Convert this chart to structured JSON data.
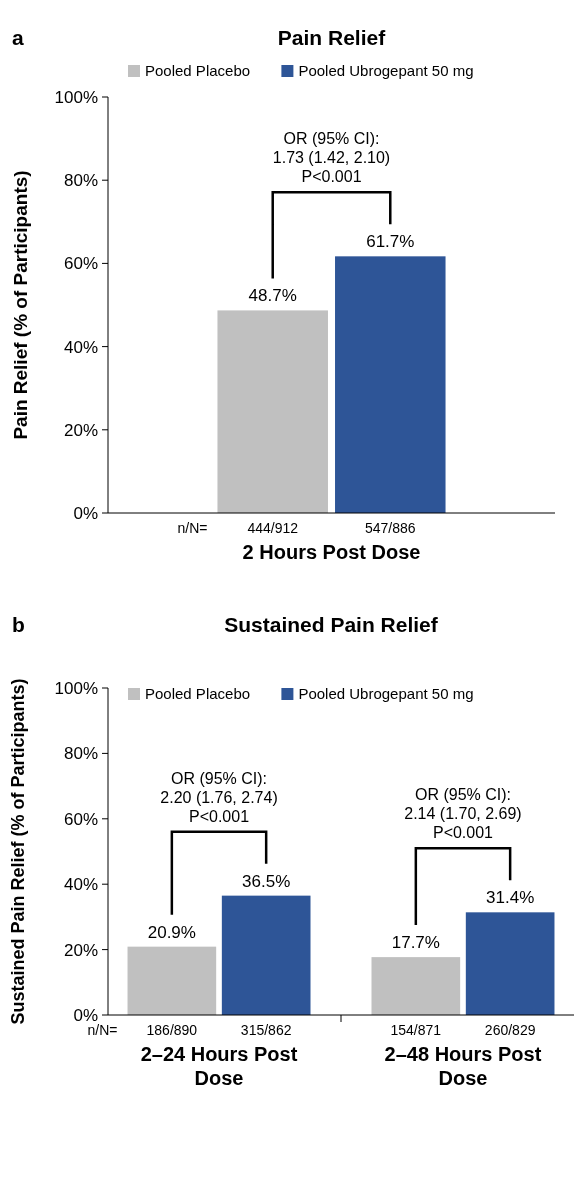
{
  "chart_data": [
    {
      "type": "bar",
      "title": "Pain Relief",
      "ylabel": "Pain Relief (% of Participants)",
      "categories": [
        "2 Hours Post Dose"
      ],
      "series": [
        {
          "name": "Pooled Placebo",
          "color": "#c0c0c0",
          "values": [
            48.7
          ],
          "value_labels": [
            "48.7%"
          ]
        },
        {
          "name": "Pooled Ubrogepant 50 mg",
          "color": "#2e5597",
          "values": [
            61.7
          ],
          "value_labels": [
            "61.7%"
          ]
        }
      ],
      "ylim": [
        0,
        100
      ],
      "yticks": [
        {
          "value": 0,
          "label": "0%"
        },
        {
          "value": 20,
          "label": "20%"
        },
        {
          "value": 40,
          "label": "40%"
        },
        {
          "value": 60,
          "label": "60%"
        },
        {
          "value": 80,
          "label": "80%"
        },
        {
          "value": 100,
          "label": "100%"
        }
      ],
      "legend": "top",
      "grid": false,
      "annotations": [
        "a",
        "n/N=",
        "444/912",
        "547/886",
        "OR (95% CI):\n1.73 (1.42, 2.10)\nP<0.001"
      ]
    },
    {
      "type": "bar",
      "title": "Sustained Pain Relief",
      "ylabel": "Sustained Pain Relief (% of Participants)",
      "categories": [
        "2–24 Hours Post Dose",
        "2–48 Hours Post Dose"
      ],
      "series": [
        {
          "name": "Pooled Placebo",
          "color": "#c0c0c0",
          "values": [
            20.9,
            17.7
          ],
          "value_labels": [
            "20.9%",
            "17.7%"
          ]
        },
        {
          "name": "Pooled Ubrogepant 50 mg",
          "color": "#2e5597",
          "values": [
            36.5,
            31.4
          ],
          "value_labels": [
            "36.5%",
            "31.4%"
          ]
        }
      ],
      "ylim": [
        0,
        100
      ],
      "yticks": [
        {
          "value": 0,
          "label": "0%"
        },
        {
          "value": 20,
          "label": "20%"
        },
        {
          "value": 40,
          "label": "40%"
        },
        {
          "value": 60,
          "label": "60%"
        },
        {
          "value": 80,
          "label": "80%"
        },
        {
          "value": 100,
          "label": "100%"
        }
      ],
      "legend": "top",
      "grid": false,
      "annotations": [
        "b",
        "n/N=",
        "186/890",
        "315/862",
        "154/871",
        "260/829",
        "OR (95% CI):\n2.20 (1.76, 2.74)\nP<0.001",
        "OR (95% CI):\n2.14 (1.70, 2.69)\nP<0.001"
      ]
    }
  ]
}
